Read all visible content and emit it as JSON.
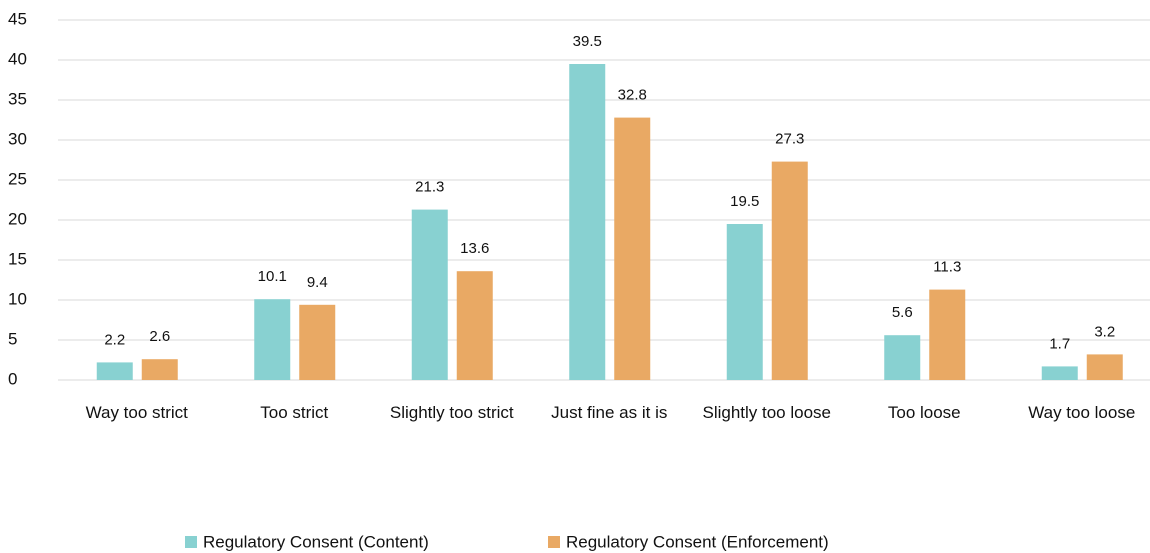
{
  "chart_data": {
    "type": "bar",
    "categories": [
      "Way too strict",
      "Too strict",
      "Slightly too strict",
      "Just fine as it is",
      "Slightly too loose",
      "Too loose",
      "Way too loose"
    ],
    "series": [
      {
        "name": "Regulatory Consent (Content)",
        "color": "#88d1d1",
        "values": [
          2.2,
          10.1,
          21.3,
          39.5,
          19.5,
          5.6,
          1.7
        ]
      },
      {
        "name": "Regulatory Consent (Enforcement)",
        "color": "#e9a964",
        "values": [
          2.6,
          9.4,
          13.6,
          32.8,
          27.3,
          11.3,
          3.2
        ]
      }
    ],
    "ylim": [
      0,
      45
    ],
    "yticks": [
      0,
      5,
      10,
      15,
      20,
      25,
      30,
      35,
      40,
      45
    ],
    "grid": true
  }
}
